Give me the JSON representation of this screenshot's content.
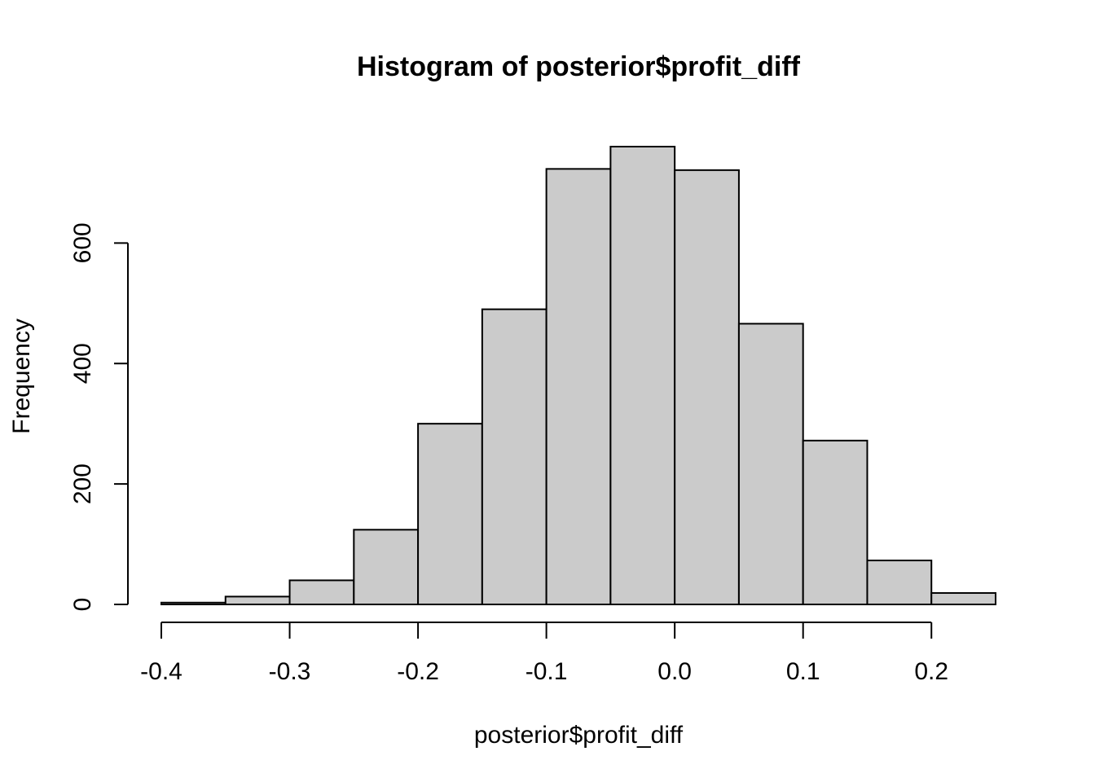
{
  "chart_data": {
    "type": "bar",
    "title": "Histogram of posterior$profit_diff",
    "xlabel": "posterior$profit_diff",
    "ylabel": "Frequency",
    "bins": [
      {
        "start": -0.4,
        "end": -0.35,
        "count": 3
      },
      {
        "start": -0.35,
        "end": -0.3,
        "count": 13
      },
      {
        "start": -0.3,
        "end": -0.25,
        "count": 40
      },
      {
        "start": -0.25,
        "end": -0.2,
        "count": 124
      },
      {
        "start": -0.2,
        "end": -0.15,
        "count": 300
      },
      {
        "start": -0.15,
        "end": -0.1,
        "count": 490
      },
      {
        "start": -0.1,
        "end": -0.05,
        "count": 723
      },
      {
        "start": -0.05,
        "end": 0.0,
        "count": 760
      },
      {
        "start": 0.0,
        "end": 0.05,
        "count": 721
      },
      {
        "start": 0.05,
        "end": 0.1,
        "count": 466
      },
      {
        "start": 0.1,
        "end": 0.15,
        "count": 272
      },
      {
        "start": 0.15,
        "end": 0.2,
        "count": 73
      },
      {
        "start": 0.2,
        "end": 0.25,
        "count": 19
      }
    ],
    "x_ticks": [
      -0.4,
      -0.3,
      -0.2,
      -0.1,
      0.0,
      0.1,
      0.2
    ],
    "x_tick_labels": [
      "-0.4",
      "-0.3",
      "-0.2",
      "-0.1",
      "0.0",
      "0.1",
      "0.2"
    ],
    "y_ticks": [
      0,
      200,
      400,
      600
    ],
    "y_tick_labels": [
      "0",
      "200",
      "400",
      "600"
    ],
    "xlim": [
      -0.4,
      0.25
    ],
    "ylim": [
      0,
      760
    ],
    "grid": false,
    "bar_fill": "#cbcbcb",
    "bar_border": "#000000"
  }
}
